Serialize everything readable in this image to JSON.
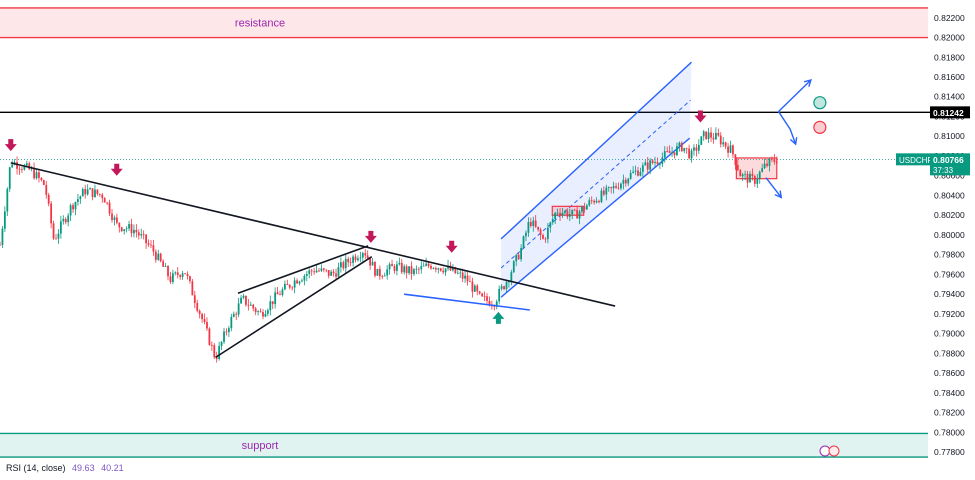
{
  "chart_data": {
    "type": "candlestick",
    "symbol": "USDCHF",
    "countdown": "37:33",
    "current_price": 0.80766,
    "ylim": [
      0.7768,
      0.8238
    ],
    "y_ticks": [
      "0.82200",
      "0.82000",
      "0.81800",
      "0.81600",
      "0.81400",
      "0.81200",
      "0.81000",
      "0.80800",
      "0.80600",
      "0.80400",
      "0.80200",
      "0.80000",
      "0.79800",
      "0.79600",
      "0.79400",
      "0.79200",
      "0.79000",
      "0.78800",
      "0.78600",
      "0.78400",
      "0.78200",
      "0.78000",
      "0.77800"
    ],
    "labeled_level": {
      "label": "0.81242",
      "value": 0.81242,
      "color": "#000000"
    },
    "zones": [
      {
        "label": "resistance",
        "from": 0.82,
        "to": 0.823,
        "color": "#f23645"
      },
      {
        "label": "support",
        "from": 0.7775,
        "to": 0.7799,
        "color": "#089981"
      }
    ],
    "price_path": [
      [
        0.0,
        0.799
      ],
      [
        1.2,
        0.8075
      ],
      [
        3.5,
        0.8065
      ],
      [
        5,
        0.805
      ],
      [
        6,
        0.7995
      ],
      [
        8,
        0.803
      ],
      [
        9.5,
        0.8045
      ],
      [
        11.5,
        0.804
      ],
      [
        13,
        0.801
      ],
      [
        15,
        0.8005
      ],
      [
        17,
        0.7985
      ],
      [
        19,
        0.7955
      ],
      [
        20.5,
        0.7965
      ],
      [
        22.5,
        0.7915
      ],
      [
        24,
        0.7875
      ],
      [
        25.5,
        0.791
      ],
      [
        27,
        0.7935
      ],
      [
        29,
        0.792
      ],
      [
        31,
        0.794
      ],
      [
        33,
        0.7955
      ],
      [
        35,
        0.7965
      ],
      [
        37,
        0.796
      ],
      [
        39,
        0.7975
      ],
      [
        40.5,
        0.7985
      ],
      [
        42,
        0.796
      ],
      [
        44,
        0.7968
      ],
      [
        46,
        0.7962
      ],
      [
        48,
        0.797
      ],
      [
        50,
        0.7965
      ],
      [
        52,
        0.7955
      ],
      [
        53.5,
        0.7935
      ],
      [
        55,
        0.7932
      ],
      [
        56.5,
        0.7955
      ],
      [
        58,
        0.7985
      ],
      [
        59,
        0.8015
      ],
      [
        60.5,
        0.7995
      ],
      [
        62,
        0.8025
      ],
      [
        64,
        0.802
      ],
      [
        66,
        0.8035
      ],
      [
        68,
        0.8045
      ],
      [
        70,
        0.806
      ],
      [
        72,
        0.807
      ],
      [
        74,
        0.808
      ],
      [
        76,
        0.809
      ],
      [
        77,
        0.808
      ],
      [
        78.5,
        0.8102
      ],
      [
        80,
        0.8098
      ],
      [
        81.5,
        0.8085
      ],
      [
        82.5,
        0.806
      ],
      [
        84,
        0.8055
      ],
      [
        85.2,
        0.807
      ],
      [
        86.5,
        0.8077
      ]
    ],
    "markers": [
      {
        "kind": "down-arrow",
        "t": 1.2,
        "price": 0.809,
        "color": "#c2185b"
      },
      {
        "kind": "down-arrow",
        "t": 13.0,
        "price": 0.8065,
        "color": "#c2185b"
      },
      {
        "kind": "down-arrow",
        "t": 41.3,
        "price": 0.7997,
        "color": "#c2185b"
      },
      {
        "kind": "down-arrow",
        "t": 50.3,
        "price": 0.7987,
        "color": "#c2185b"
      },
      {
        "kind": "up-arrow",
        "t": 55.5,
        "price": 0.7917,
        "color": "#089981"
      },
      {
        "kind": "down-arrow",
        "t": 78.0,
        "price": 0.8119,
        "color": "#c2185b"
      }
    ],
    "trendlines": [
      {
        "from": [
          1.2,
          0.8073
        ],
        "to": [
          68.5,
          0.7928
        ],
        "color": "#131722"
      },
      {
        "from": [
          24.0,
          0.7876
        ],
        "to": [
          41.4,
          0.7978
        ],
        "color": "#131722"
      },
      {
        "from": [
          26.5,
          0.7941
        ],
        "to": [
          41.0,
          0.7989
        ],
        "color": "#131722"
      },
      {
        "from": [
          45.0,
          0.794
        ],
        "to": [
          59.0,
          0.7924
        ],
        "color": "#2962ff"
      }
    ],
    "channel": {
      "lower": [
        [
          55.8,
          0.7937
        ],
        [
          76.8,
          0.8098
        ]
      ],
      "upper": [
        [
          55.8,
          0.7996
        ],
        [
          77.0,
          0.8175
        ]
      ],
      "color": "#2962ff"
    },
    "boxes": [
      {
        "t0": 61.5,
        "t1": 65.0,
        "p0": 0.802,
        "p1": 0.8029
      },
      {
        "t0": 82.0,
        "t1": 86.5,
        "p0": 0.8057,
        "p1": 0.8078
      }
    ],
    "projection_arrows": [
      {
        "points": [
          [
            86.7,
            0.8125
          ],
          [
            90.3,
            0.8157
          ]
        ]
      },
      {
        "points": [
          [
            86.7,
            0.8125
          ],
          [
            88.0,
            0.8107
          ],
          [
            88.6,
            0.8092
          ]
        ]
      },
      {
        "points": [
          [
            85.3,
            0.8058
          ],
          [
            87.0,
            0.8038
          ]
        ]
      }
    ],
    "circles": [
      {
        "t": 91.3,
        "price": 0.8134,
        "color": "#089981"
      },
      {
        "t": 91.3,
        "price": 0.8109,
        "color": "#f23645"
      }
    ],
    "indicator": {
      "label": "RSI (14, close)",
      "values": [
        "49.63",
        "40.21"
      ]
    }
  }
}
